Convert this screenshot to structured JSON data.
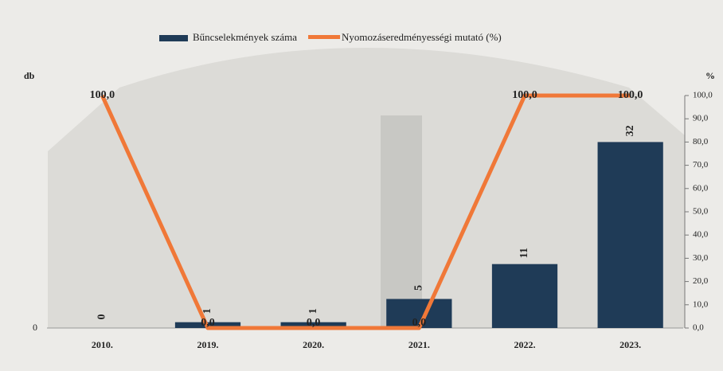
{
  "chart_data": {
    "type": "bar",
    "y_label": "db",
    "y2_label": "%",
    "categories": [
      "2010.",
      "2019.",
      "2020.",
      "2021.",
      "2022.",
      "2023."
    ],
    "series": [
      {
        "name": "Bűncselekmények száma",
        "type": "bar",
        "color": "#1f3b57",
        "axis": "y",
        "values": [
          0,
          1,
          1,
          5,
          11,
          32
        ]
      },
      {
        "name": "Nyomozáseredményességi mutató (%)",
        "type": "line",
        "color": "#f07838",
        "axis": "y2",
        "values": [
          100,
          0,
          0,
          0,
          100,
          100
        ],
        "value_labels": [
          "100,0",
          "0,0",
          "0,0",
          "0,0",
          "100,0",
          "100,0"
        ]
      }
    ],
    "ylim": [
      0,
      40
    ],
    "yticks": [
      0
    ],
    "y2lim": [
      0,
      100
    ],
    "y2ticks": [
      {
        "value": 0,
        "label": "0,0"
      },
      {
        "value": 10,
        "label": "10,0"
      },
      {
        "value": 20,
        "label": "20,0"
      },
      {
        "value": 30,
        "label": "30,0"
      },
      {
        "value": 40,
        "label": "40,0"
      },
      {
        "value": 50,
        "label": "50,0"
      },
      {
        "value": 60,
        "label": "60,0"
      },
      {
        "value": 70,
        "label": "70,0"
      },
      {
        "value": 80,
        "label": "80,0"
      },
      {
        "value": 90,
        "label": "90,0"
      },
      {
        "value": 100,
        "label": "100,0"
      }
    ],
    "legend": "top"
  }
}
